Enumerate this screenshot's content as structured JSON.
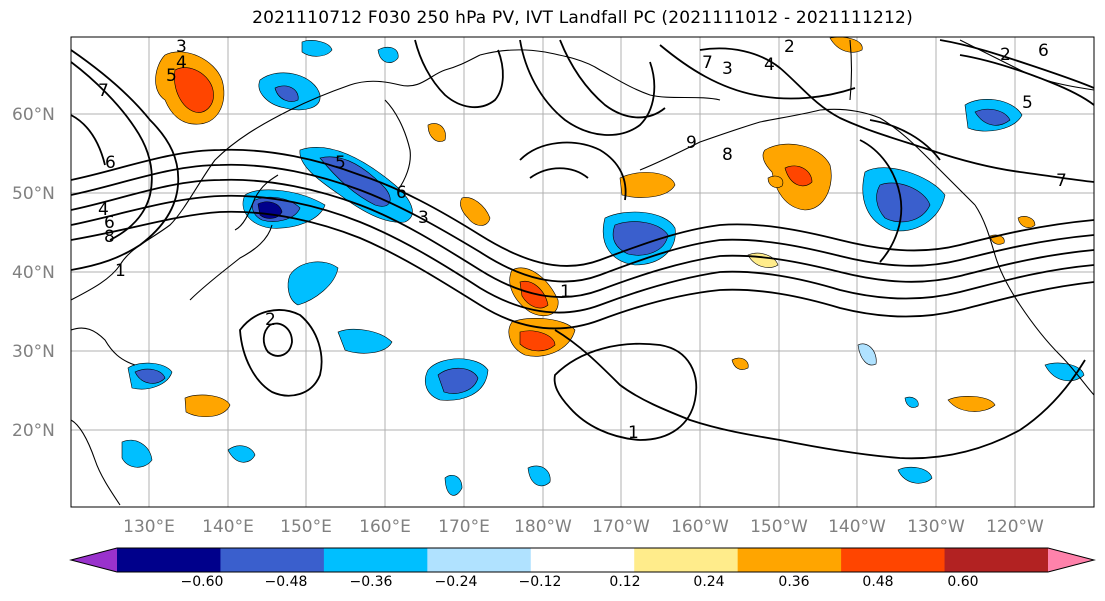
{
  "title": "2021110712 F030 250 hPa PV, IVT Landfall PC (2021111012 - 2021111212)",
  "map": {
    "lat_labels": [
      "60°N",
      "50°N",
      "40°N",
      "30°N",
      "20°N"
    ],
    "lon_labels": [
      "130°E",
      "140°E",
      "150°E",
      "160°E",
      "170°E",
      "180°W",
      "170°W",
      "160°W",
      "150°W",
      "140°W",
      "130°W",
      "120°W"
    ],
    "contour_labels": [
      "3",
      "4",
      "5",
      "7",
      "6",
      "4",
      "6",
      "8",
      "2",
      "5",
      "6",
      "3",
      "1",
      "1",
      "1",
      "4",
      "2",
      "7",
      "3",
      "5",
      "9",
      "8",
      "6",
      "7",
      "2"
    ]
  },
  "colorbar": {
    "tick_labels": [
      "−0.60",
      "−0.48",
      "−0.36",
      "−0.24",
      "−0.12",
      "0.12",
      "0.24",
      "0.36",
      "0.48",
      "0.60"
    ],
    "colors": [
      "#9932cc",
      "#00008b",
      "#3a5fcd",
      "#00bfff",
      "#b0e2ff",
      "#ffffff",
      "#ffec8b",
      "#ffa500",
      "#ff4500",
      "#b22222",
      "#ff82ab"
    ]
  }
}
